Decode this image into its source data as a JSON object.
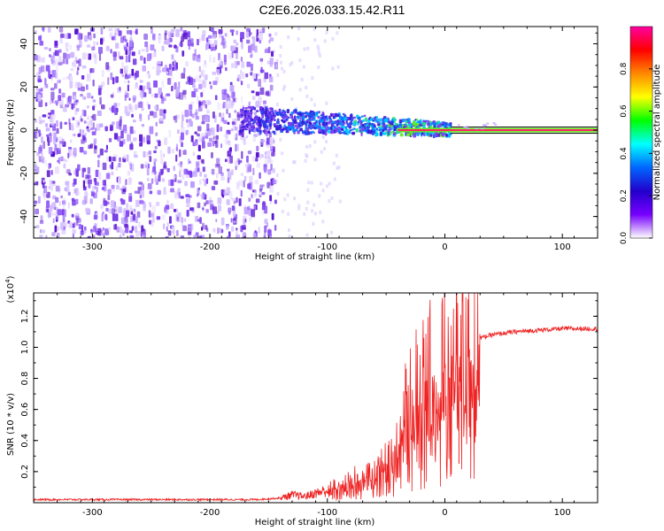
{
  "title": "C2E6.2026.033.15.42.R11",
  "chart_data": [
    {
      "type": "heatmap",
      "xlabel": "Height of straight line (km)",
      "ylabel": "Frequency (Hz)",
      "xlim": [
        -350,
        130
      ],
      "ylim": [
        -50,
        48
      ],
      "xticks": [
        -300,
        -200,
        -100,
        0,
        100
      ],
      "yticks": [
        -40,
        -20,
        0,
        20,
        40
      ],
      "colorbar": {
        "label": "Normalized spectral amplitude",
        "range": [
          0,
          1
        ],
        "ticks": [
          0.0,
          0.2,
          0.4,
          0.6,
          0.8
        ],
        "colormap": [
          "#ff00a0",
          "#ff0000",
          "#ff8800",
          "#ffff00",
          "#00ff00",
          "#00ffff",
          "#0066ff",
          "#2200cc",
          "#7700ff",
          "#ffffff"
        ]
      },
      "noise_region": {
        "x_from": -350,
        "x_to": -145
      },
      "signal_line_frequency": 0,
      "signal_start_x": 5
    },
    {
      "type": "line",
      "xlabel": "Height of straight line (km)",
      "ylabel": "SNR (10 * v/v)",
      "yscale_label_base": "(x10",
      "yscale_label_exp": "4",
      "yscale_label_close": ")",
      "xlim": [
        -350,
        130
      ],
      "ylim": [
        0,
        1.35
      ],
      "xticks": [
        -300,
        -200,
        -100,
        0,
        100
      ],
      "yticks": [
        0.2,
        0.4,
        0.6,
        0.8,
        1.0,
        1.2
      ],
      "series_color": "#ee2222",
      "x": [
        -350,
        -300,
        -250,
        -200,
        -160,
        -140,
        -130,
        -120,
        -110,
        -100,
        -90,
        -80,
        -70,
        -60,
        -50,
        -45,
        -40,
        -35,
        -30,
        -25,
        -20,
        -15,
        -10,
        -5,
        0,
        5,
        10,
        15,
        20,
        25,
        30,
        40,
        50,
        60,
        80,
        100,
        130
      ],
      "values": [
        0.02,
        0.02,
        0.02,
        0.02,
        0.02,
        0.03,
        0.05,
        0.04,
        0.06,
        0.08,
        0.12,
        0.15,
        0.16,
        0.18,
        0.26,
        0.3,
        0.42,
        0.55,
        0.65,
        0.72,
        0.78,
        0.85,
        0.88,
        0.86,
        0.9,
        0.95,
        1.02,
        0.98,
        1.02,
        1.05,
        1.06,
        1.08,
        1.09,
        1.1,
        1.11,
        1.12,
        1.12
      ]
    }
  ]
}
